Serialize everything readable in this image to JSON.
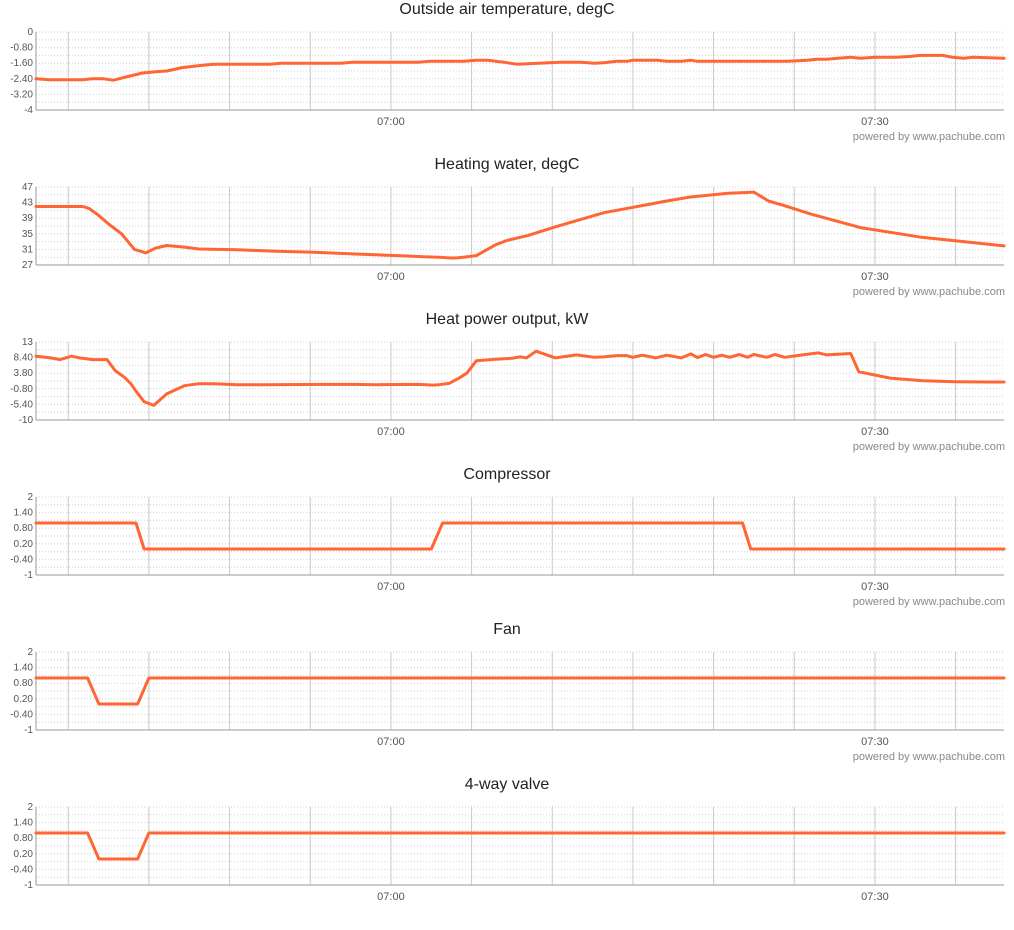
{
  "credit": "powered by www.pachube.com",
  "style": {
    "line_color": "#ff6633",
    "grid_color": "#c8c8c8"
  },
  "time_axis": {
    "start_min": 0,
    "end_min": 60,
    "tick_labels": [
      {
        "label": "07:00",
        "min": 22
      },
      {
        "label": "07:30",
        "min": 52
      }
    ]
  },
  "chart_data": [
    {
      "type": "line",
      "title": "Outside air temperature, degC",
      "ylim": [
        -4,
        0
      ],
      "yticks": [
        "0",
        "-0.80",
        "-1.60",
        "-2.40",
        "-3.20",
        "-4"
      ],
      "x": [
        0,
        0.8,
        2,
        2.9,
        3.5,
        4.2,
        4.8,
        5.7,
        6.6,
        7.5,
        8.1,
        9.1,
        10.2,
        11,
        14.5,
        15.2,
        18.9,
        19.6,
        23.7,
        24.4,
        25.5,
        26.5,
        27.3,
        28,
        29,
        29.8,
        32.5,
        33.8,
        34.6,
        35.2,
        36,
        36.6,
        37,
        38.5,
        39.1,
        40,
        40.6,
        41,
        46.6,
        47.8,
        48.4,
        49,
        49.7,
        50.5,
        51.1,
        52,
        53.4,
        54.2,
        54.8,
        55.3,
        56.2,
        56.8,
        57.5,
        58.1,
        60
      ],
      "values": [
        -2.4,
        -2.45,
        -2.45,
        -2.45,
        -2.4,
        -2.4,
        -2.47,
        -2.28,
        -2.1,
        -2.03,
        -2.0,
        -1.82,
        -1.72,
        -1.65,
        -1.65,
        -1.6,
        -1.6,
        -1.55,
        -1.55,
        -1.5,
        -1.5,
        -1.5,
        -1.45,
        -1.45,
        -1.55,
        -1.65,
        -1.55,
        -1.55,
        -1.6,
        -1.58,
        -1.5,
        -1.5,
        -1.45,
        -1.45,
        -1.5,
        -1.5,
        -1.45,
        -1.5,
        -1.5,
        -1.45,
        -1.4,
        -1.4,
        -1.35,
        -1.3,
        -1.35,
        -1.3,
        -1.3,
        -1.25,
        -1.2,
        -1.2,
        -1.2,
        -1.3,
        -1.35,
        -1.3,
        -1.35
      ]
    },
    {
      "type": "line",
      "title": "Heating water, degC",
      "ylim": [
        27,
        47
      ],
      "yticks": [
        "47",
        "43",
        "39",
        "35",
        "31",
        "27"
      ],
      "x": [
        0,
        2.8,
        3,
        3.3,
        3.8,
        4.5,
        5.3,
        5.7,
        6.1,
        6.5,
        6.8,
        7.4,
        8.1,
        9.2,
        10.1,
        12.5,
        14.9,
        17,
        20,
        23,
        24,
        25,
        25.7,
        26,
        26.5,
        27.3,
        28.5,
        29.2,
        30.5,
        32.2,
        35.2,
        39.1,
        40.5,
        42.9,
        44,
        44.5,
        45.4,
        46.4,
        48,
        51.1,
        54.9,
        60
      ],
      "values": [
        42,
        42,
        41.9,
        41.5,
        40,
        37.5,
        35,
        33,
        31,
        30.5,
        30.1,
        31.3,
        32,
        31.6,
        31.1,
        30.9,
        30.5,
        30.3,
        29.8,
        29.3,
        29.1,
        29,
        28.8,
        28.8,
        29,
        29.4,
        32.2,
        33.3,
        34.6,
        36.8,
        40.4,
        43.4,
        44.4,
        45.4,
        45.6,
        45.7,
        43.4,
        42.2,
        40.1,
        36.6,
        34.1,
        31.9
      ]
    },
    {
      "type": "line",
      "title": "Heat power output, kW",
      "ylim": [
        -10,
        13
      ],
      "yticks": [
        "13",
        "8.40",
        "3.80",
        "-0.80",
        "-5.40",
        "-10"
      ],
      "x": [
        0,
        0.9,
        1.5,
        2.2,
        2.7,
        3.5,
        4.2,
        4.4,
        4.9,
        5.5,
        5.9,
        6.2,
        6.7,
        7.3,
        8.1,
        9.2,
        10.1,
        11,
        12.5,
        14,
        18,
        19.7,
        21.1,
        23.7,
        24.6,
        25,
        25.6,
        26.2,
        26.7,
        27.3,
        28.5,
        29.5,
        30,
        30.4,
        31,
        32.2,
        33.5,
        34.6,
        35.2,
        36,
        36.6,
        37,
        37.6,
        38.4,
        39.1,
        40,
        40.6,
        41,
        41.5,
        42,
        42.5,
        43,
        43.6,
        44.1,
        44.5,
        45.3,
        45.8,
        46.4,
        47.5,
        48.5,
        49,
        50.5,
        51,
        53,
        55,
        57,
        59,
        60
      ],
      "values": [
        8.8,
        8.3,
        7.8,
        8.8,
        8.3,
        7.8,
        7.8,
        7.8,
        4.6,
        2.5,
        0.6,
        -1.5,
        -4.6,
        -5.7,
        -2.3,
        0.1,
        0.7,
        0.7,
        0.4,
        0.4,
        0.5,
        0.5,
        0.4,
        0.5,
        0.3,
        0.4,
        0.8,
        2.3,
        3.8,
        7.5,
        7.9,
        8.2,
        8.6,
        8.3,
        10.3,
        8.3,
        9.2,
        8.5,
        8.6,
        9,
        9,
        8.5,
        9.1,
        8.3,
        9.1,
        8.3,
        9.5,
        8.4,
        9.3,
        8.5,
        9.1,
        8.5,
        9.3,
        8.5,
        9.3,
        8.5,
        9.3,
        8.5,
        9.2,
        9.8,
        9.2,
        9.6,
        4.2,
        2.3,
        1.6,
        1.3,
        1.2,
        1.2
      ]
    },
    {
      "type": "line",
      "title": "Compressor",
      "ylim": [
        -1,
        2
      ],
      "yticks": [
        "2",
        "1.40",
        "0.80",
        "0.20",
        "-0.40",
        "-1"
      ],
      "x": [
        0,
        6.2,
        6.7,
        24.5,
        25.2,
        43.8,
        44.3,
        60
      ],
      "values": [
        1,
        1,
        0,
        0,
        1,
        1,
        0,
        0
      ]
    },
    {
      "type": "line",
      "title": "Fan",
      "ylim": [
        -1,
        2
      ],
      "yticks": [
        "2",
        "1.40",
        "0.80",
        "0.20",
        "-0.40",
        "-1"
      ],
      "x": [
        0,
        3.2,
        3.9,
        6.3,
        7,
        60
      ],
      "values": [
        1,
        1,
        0,
        0,
        1,
        1
      ]
    },
    {
      "type": "line",
      "title": "4-way valve",
      "ylim": [
        -1,
        2
      ],
      "yticks": [
        "2",
        "1.40",
        "0.80",
        "0.20",
        "-0.40",
        "-1"
      ],
      "x": [
        0,
        3.2,
        3.9,
        6.3,
        7,
        60
      ],
      "values": [
        1,
        1,
        0,
        0,
        1,
        1
      ]
    }
  ]
}
